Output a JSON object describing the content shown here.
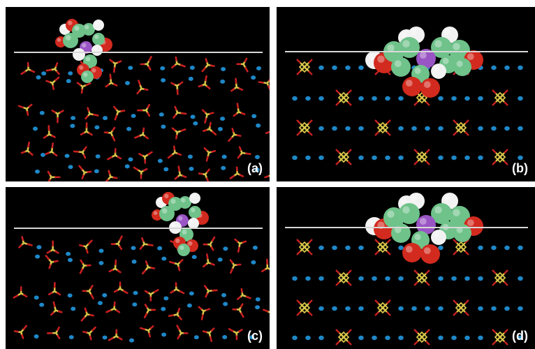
{
  "panels": [
    {
      "id": "a",
      "label": "(a)",
      "view": "side",
      "molecule": "small"
    },
    {
      "id": "b",
      "label": "(b)",
      "view": "top",
      "molecule": "large"
    },
    {
      "id": "c",
      "label": "(c)",
      "view": "side",
      "molecule": "small"
    },
    {
      "id": "d",
      "label": "(d)",
      "view": "top",
      "molecule": "large"
    }
  ],
  "colors": {
    "background": "#000000",
    "surface_line": "#d8d8d8",
    "cation": "#1e88c8",
    "anion_center": "#d8c64a",
    "anion_oxygen": "#c82020",
    "atom_carbon": "#6fc28a",
    "atom_oxygen": "#d22a1e",
    "atom_hydrogen": "#f2f2f2",
    "atom_central": "#9a55c4"
  }
}
